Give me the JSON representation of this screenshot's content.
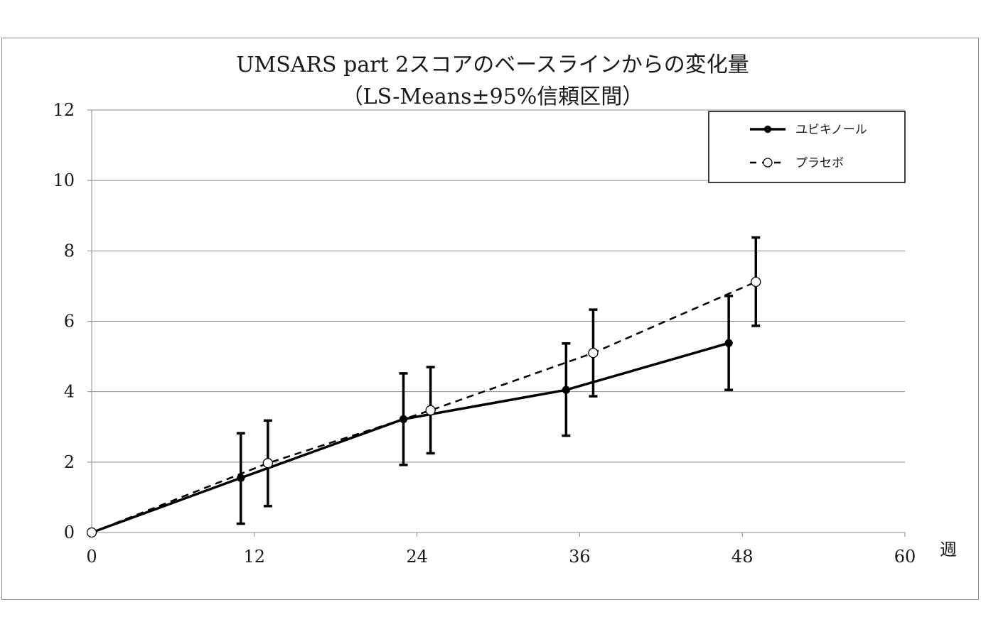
{
  "chart_data": {
    "type": "line",
    "title": "UMSARS part 2スコアのベースラインからの変化量",
    "subtitle": "（LS-Means±95%信頼区間）",
    "xlabel": "週",
    "ylabel": "",
    "xlim": [
      0,
      60
    ],
    "ylim": [
      0,
      12
    ],
    "xticks": [
      "0",
      "12",
      "24",
      "36",
      "48",
      "60"
    ],
    "yticks": [
      "0",
      "2",
      "4",
      "6",
      "8",
      "10",
      "12"
    ],
    "grid": "horizontal",
    "legend_position": "top-right",
    "series": [
      {
        "name": "ユビキノール",
        "style": "solid",
        "marker": "filled-circle",
        "color": "#000000",
        "points": [
          {
            "x": 0,
            "y": 0,
            "lower": 0,
            "upper": 0
          },
          {
            "x": 11,
            "y": 1.55,
            "lower": 0.25,
            "upper": 2.82
          },
          {
            "x": 23,
            "y": 3.22,
            "lower": 1.92,
            "upper": 4.52
          },
          {
            "x": 35,
            "y": 4.05,
            "lower": 2.75,
            "upper": 5.37
          },
          {
            "x": 47,
            "y": 5.38,
            "lower": 4.05,
            "upper": 6.72
          }
        ]
      },
      {
        "name": "プラセボ",
        "style": "dashed",
        "marker": "open-circle",
        "color": "#000000",
        "points": [
          {
            "x": 0,
            "y": 0,
            "lower": 0,
            "upper": 0
          },
          {
            "x": 13,
            "y": 1.97,
            "lower": 0.75,
            "upper": 3.18
          },
          {
            "x": 25,
            "y": 3.47,
            "lower": 2.25,
            "upper": 4.7
          },
          {
            "x": 37,
            "y": 5.1,
            "lower": 3.87,
            "upper": 6.33
          },
          {
            "x": 49,
            "y": 7.12,
            "lower": 5.87,
            "upper": 8.38
          }
        ]
      }
    ]
  }
}
